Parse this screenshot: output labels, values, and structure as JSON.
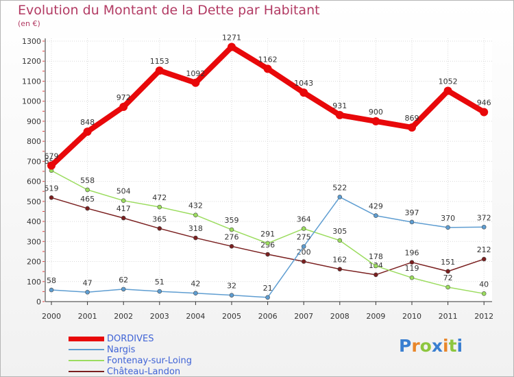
{
  "title": "Evolution du Montant de la Dette par Habitant",
  "subtitle": "(en €)",
  "logo": {
    "text": "Proxiti",
    "letter_colors": [
      "#3a7fd0",
      "#e8862a",
      "#8dc63f",
      "#3a7fd0",
      "#e8862a",
      "#8dc63f",
      "#3a7fd0"
    ]
  },
  "chart_data": {
    "type": "line",
    "title": "Evolution du Montant de la Dette par Habitant",
    "ylabel": "(en €)",
    "xlabel": "",
    "x": [
      "2000",
      "2001",
      "2002",
      "2003",
      "2004",
      "2005",
      "2006",
      "2007",
      "2008",
      "2009",
      "2010",
      "2011",
      "2012"
    ],
    "ylim": [
      0,
      1300
    ],
    "yticks": [
      0,
      100,
      200,
      300,
      400,
      500,
      600,
      700,
      800,
      900,
      1000,
      1100,
      1200,
      1300
    ],
    "grid": true,
    "legend_position": "bottom-left",
    "series": [
      {
        "name": "Château-Landon",
        "color": "#7a1f1f",
        "values": [
          519,
          465,
          417,
          365,
          318,
          276,
          236,
          200,
          162,
          134,
          196,
          151,
          212
        ]
      },
      {
        "name": "Fontenay-sur-Loing",
        "color": "#9bdc5e",
        "values": [
          654,
          558,
          504,
          472,
          432,
          359,
          291,
          364,
          305,
          178,
          119,
          72,
          40
        ]
      },
      {
        "name": "Nargis",
        "color": "#5e9dd1",
        "values": [
          58,
          47,
          62,
          51,
          42,
          32,
          21,
          275,
          522,
          429,
          397,
          370,
          372
        ]
      },
      {
        "name": "DORDIVES",
        "color": "#e8080a",
        "values": [
          679,
          848,
          972,
          1153,
          1092,
          1271,
          1162,
          1043,
          931,
          900,
          869,
          1052,
          946
        ]
      }
    ],
    "legend_order": [
      "DORDIVES",
      "Nargis",
      "Fontenay-sur-Loing",
      "Château-Landon"
    ]
  }
}
